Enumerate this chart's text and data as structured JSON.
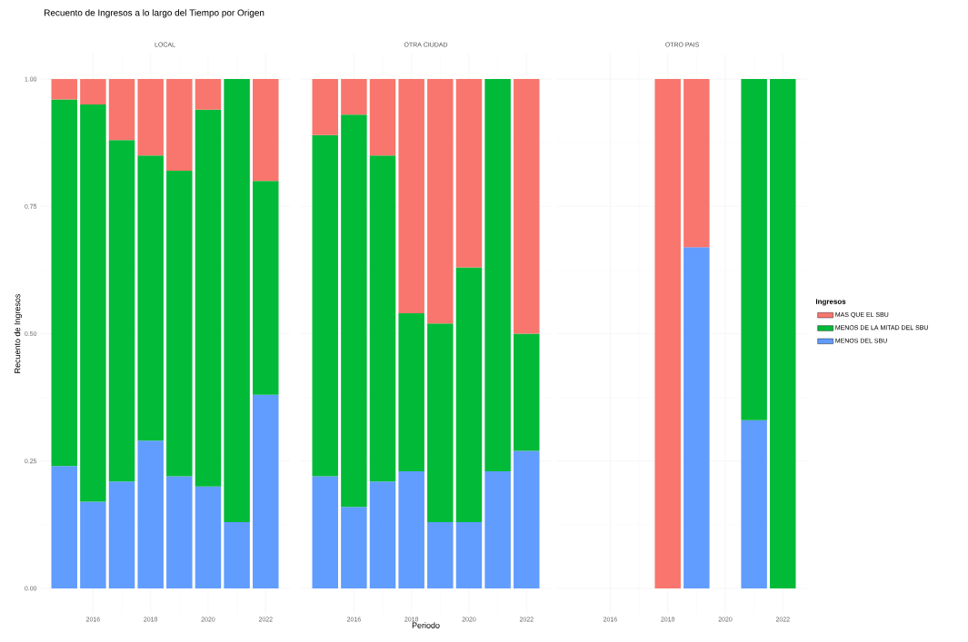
{
  "chart_data": [
    {
      "type": "bar",
      "title": "LOCAL",
      "annotations": [
        "Recuento de Ingresos a lo largo del Tiempo por Origen"
      ],
      "ylabel": "Recuento de Ingresos",
      "stacked": true,
      "grid": true,
      "x": [
        2015,
        2016,
        2017,
        2018,
        2019,
        2020,
        2021,
        2022
      ],
      "xlim": [
        2014.155,
        2022.845
      ],
      "ylim": [
        -0.05,
        1.05
      ],
      "xticks": [
        2016,
        2018,
        2020,
        2022
      ],
      "yticks": [
        {
          "value": 0,
          "label": "0.00"
        },
        {
          "value": 0.25,
          "label": "0.25"
        },
        {
          "value": 0.5,
          "label": "0.50"
        },
        {
          "value": 0.75,
          "label": "0.75"
        },
        {
          "value": 1,
          "label": "1.00"
        }
      ],
      "series": [
        {
          "color": "#619cff",
          "values": [
            0.24,
            0.17,
            0.21,
            0.29,
            0.22,
            0.2,
            0.13,
            0.38
          ]
        },
        {
          "color": "#00ba38",
          "values": [
            0.72,
            0.78,
            0.67,
            0.56,
            0.6,
            0.74,
            0.87,
            0.42
          ]
        },
        {
          "color": "#f8766d",
          "values": [
            0.04,
            0.05,
            0.12,
            0.15,
            0.18,
            0.06,
            0,
            0.2
          ]
        }
      ]
    },
    {
      "type": "bar",
      "title": "OTRA CIUDAD",
      "xlabel": "Periodo",
      "stacked": true,
      "grid": true,
      "tick_labels": "x",
      "x": [
        2015,
        2016,
        2017,
        2018,
        2019,
        2020,
        2021,
        2022
      ],
      "xlim": [
        2014.155,
        2022.845
      ],
      "ylim": [
        -0.05,
        1.05
      ],
      "xticks": [
        2016,
        2018,
        2020,
        2022
      ],
      "yticks": [
        0,
        0.25,
        0.5,
        0.75,
        1
      ],
      "series": [
        {
          "color": "#619cff",
          "values": [
            0.22,
            0.16,
            0.21,
            0.23,
            0.13,
            0.13,
            0.23,
            0.27
          ]
        },
        {
          "color": "#00ba38",
          "values": [
            0.67,
            0.77,
            0.64,
            0.31,
            0.39,
            0.5,
            0.77,
            0.23
          ]
        },
        {
          "color": "#f8766d",
          "values": [
            0.11,
            0.07,
            0.15,
            0.46,
            0.48,
            0.37,
            0,
            0.5
          ]
        }
      ]
    },
    {
      "type": "bar",
      "title": "OTRO PAIS",
      "stacked": true,
      "grid": true,
      "tick_labels": "x",
      "legend": "right",
      "legend_title": "Ingresos",
      "x": [
        2018,
        2019,
        2021,
        2022
      ],
      "xlim": [
        2014.155,
        2022.845
      ],
      "ylim": [
        -0.05,
        1.05
      ],
      "xticks": [
        2016,
        2018,
        2020,
        2022
      ],
      "yticks": [
        0,
        0.25,
        0.5,
        0.75,
        1
      ],
      "series": [
        {
          "name": "MENOS DEL SBU",
          "color": "#619cff",
          "values": [
            0,
            0.67,
            0.33,
            0
          ]
        },
        {
          "name": "MENOS DE LA MITAD DEL SBU",
          "color": "#00ba38",
          "values": [
            0,
            0,
            0.67,
            1
          ]
        },
        {
          "name": "MAS QUE EL SBU",
          "color": "#f8766d",
          "values": [
            1,
            0.33,
            0,
            0
          ]
        }
      ]
    }
  ]
}
